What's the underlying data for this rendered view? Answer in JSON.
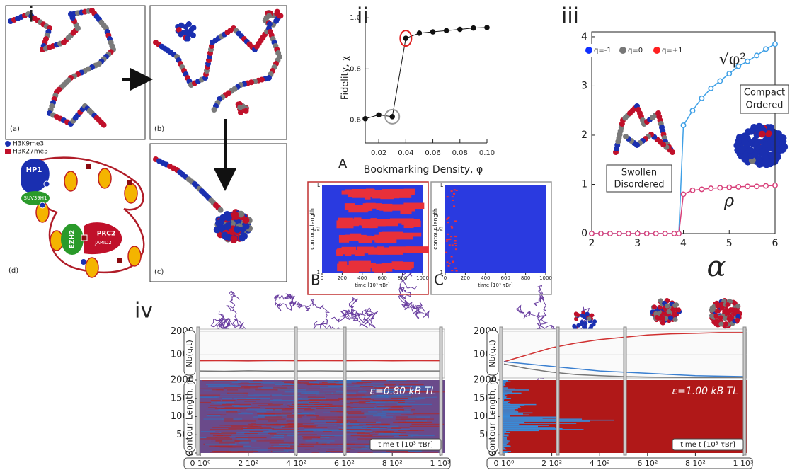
{
  "panel_labels": {
    "i": "i",
    "ii": "ii",
    "iii": "iii",
    "iv": "iv"
  },
  "panel_i": {
    "sublabels": [
      "(a)",
      "(b)",
      "(c)",
      "(d)"
    ],
    "legend": [
      {
        "label": "H3K9me3",
        "color": "#1a2fb0"
      },
      {
        "label": "H3K27me3",
        "color": "#c0102a"
      }
    ],
    "proteins": {
      "hp1": "HP1",
      "suv": "SUV39H1",
      "ezh2": "EZH2",
      "prc2": "PRC2",
      "jarid2": "JARID2"
    }
  },
  "chart_data": [
    {
      "type": "line",
      "label": "A",
      "xlabel": "Bookmarking Density, φ",
      "ylabel": "Fidelity, χ",
      "x": [
        0.01,
        0.02,
        0.03,
        0.04,
        0.05,
        0.06,
        0.07,
        0.08,
        0.09,
        0.1
      ],
      "values": [
        0.605,
        0.62,
        0.613,
        0.92,
        0.94,
        0.945,
        0.95,
        0.955,
        0.96,
        0.962
      ],
      "color": "#111111",
      "xlim": [
        0.01,
        0.1
      ],
      "ylim": [
        0.51,
        1.02
      ],
      "xticks": [
        0.02,
        0.04,
        0.06,
        0.08,
        {
          "value": 0.1,
          "label": "0.10"
        }
      ],
      "yticks": [
        0.6,
        0.8,
        {
          "value": 1.0,
          "label": "1.0"
        }
      ]
    },
    {
      "type": "heatmap",
      "label": "B",
      "ylabel": "contour length",
      "xlabel": "time [10³ τBr]",
      "xlim": [
        0,
        1000
      ],
      "xticks": [
        0,
        200,
        400,
        600,
        800,
        1000
      ],
      "ytick_labels": [
        "1",
        "L/2",
        "L"
      ],
      "frame_color": "#c03030"
    },
    {
      "type": "heatmap",
      "label": "C",
      "ylabel": "contour length",
      "xlabel": "time [10³ τBr]",
      "xlim": [
        0,
        1000
      ],
      "xticks": [
        0,
        200,
        400,
        600,
        800,
        1000
      ],
      "ytick_labels": [
        "1",
        "L/2",
        "L"
      ],
      "frame_color": "#999999"
    },
    {
      "type": "line",
      "xlabel": "α",
      "x": [
        2.0,
        2.2,
        2.4,
        2.6,
        2.8,
        3.0,
        3.2,
        3.4,
        3.6,
        3.8,
        3.9,
        4.0,
        4.2,
        4.4,
        4.6,
        4.8,
        5.0,
        5.2,
        5.4,
        5.6,
        5.8,
        6.0
      ],
      "series": [
        {
          "name": "√φ²",
          "color": "#3fa0e6",
          "values": [
            0,
            0,
            0,
            0,
            0,
            0,
            0,
            0,
            0,
            0,
            0,
            2.2,
            2.5,
            2.75,
            2.95,
            3.1,
            3.25,
            3.4,
            3.5,
            3.62,
            3.75,
            3.85
          ]
        },
        {
          "name": "ρ",
          "color": "#d8407a",
          "values": [
            0,
            0,
            0,
            0,
            0,
            0,
            0,
            0,
            0,
            0,
            0,
            0.8,
            0.88,
            0.9,
            0.92,
            0.93,
            0.94,
            0.95,
            0.96,
            0.96,
            0.97,
            0.98
          ]
        }
      ],
      "xlim": [
        2,
        6
      ],
      "ylim": [
        0,
        4.1
      ],
      "xticks": [
        2,
        3,
        4,
        5,
        6
      ],
      "yticks": [
        0,
        1,
        2,
        3,
        4
      ],
      "bead_legend": [
        {
          "label": "q=-1",
          "color": "#1030ff"
        },
        {
          "label": "q=0",
          "color": "#777777"
        },
        {
          "label": "q=+1",
          "color": "#ff2020"
        }
      ],
      "annotations": {
        "ordered": [
          "Compact",
          "Ordered"
        ],
        "disordered": [
          "Swollen",
          "Disordered"
        ]
      }
    },
    {
      "type": "kymograph",
      "annotation": "ε=0.80 kB TL",
      "xlabel": "time t [10³ τBr]",
      "ylabel": "Contour Length, m",
      "nb_label": "Nb(q,t)",
      "x": [
        0,
        100,
        200,
        300,
        400,
        500,
        600,
        700,
        800,
        900,
        1000
      ],
      "series": [
        {
          "color": "#3a7fd0",
          "values": [
            760,
            750,
            755,
            745,
            760,
            750,
            755,
            750,
            760,
            750,
            755
          ]
        },
        {
          "color": "#d03030",
          "values": [
            740,
            745,
            735,
            750,
            740,
            745,
            740,
            748,
            738,
            745,
            742
          ]
        },
        {
          "color": "#777777",
          "values": [
            300,
            290,
            310,
            295,
            300,
            305,
            295,
            300,
            298,
            302,
            300
          ]
        }
      ],
      "xlim": [
        0,
        1000
      ],
      "ylim": [
        0,
        2000
      ],
      "nb_ylim": [
        0,
        2100
      ],
      "xticks": [
        {
          "value": 0,
          "label": "0 10⁰"
        },
        {
          "value": 200,
          "label": "2 10²"
        },
        {
          "value": 400,
          "label": "4 10²"
        },
        {
          "value": 600,
          "label": "6 10²"
        },
        {
          "value": 800,
          "label": "8 10²"
        },
        {
          "value": 1000,
          "label": "1 10³"
        }
      ],
      "yticks": [
        0,
        500,
        1000,
        1500,
        2000
      ],
      "nb_yticks": [
        1000,
        2000
      ]
    },
    {
      "type": "kymograph",
      "annotation": "ε=1.00 kB TL",
      "xlabel": "time t [10³ τBr]",
      "ylabel": "Contour Length, m",
      "nb_label": "Nb(q,t)",
      "x": [
        0,
        100,
        200,
        300,
        400,
        500,
        600,
        700,
        800,
        900,
        1000
      ],
      "series": [
        {
          "color": "#d03030",
          "values": [
            700,
            1000,
            1300,
            1500,
            1650,
            1750,
            1850,
            1900,
            1920,
            1950,
            1950
          ]
        },
        {
          "color": "#3a7fd0",
          "values": [
            700,
            600,
            500,
            400,
            300,
            250,
            200,
            150,
            100,
            80,
            60
          ]
        },
        {
          "color": "#777777",
          "values": [
            600,
            400,
            250,
            150,
            100,
            60,
            40,
            30,
            20,
            20,
            20
          ]
        }
      ],
      "xlim": [
        0,
        1000
      ],
      "ylim": [
        0,
        2000
      ],
      "nb_ylim": [
        0,
        2100
      ],
      "xticks": [
        {
          "value": 0,
          "label": "0 10⁰"
        },
        {
          "value": 200,
          "label": "2 10²"
        },
        {
          "value": 400,
          "label": "4 10²"
        },
        {
          "value": 600,
          "label": "6 10²"
        },
        {
          "value": 800,
          "label": "8 10²"
        },
        {
          "value": 1000,
          "label": "1 10³"
        }
      ],
      "yticks": [
        0,
        500,
        1000,
        1500,
        2000
      ],
      "nb_yticks": [
        1000,
        2000
      ]
    }
  ]
}
